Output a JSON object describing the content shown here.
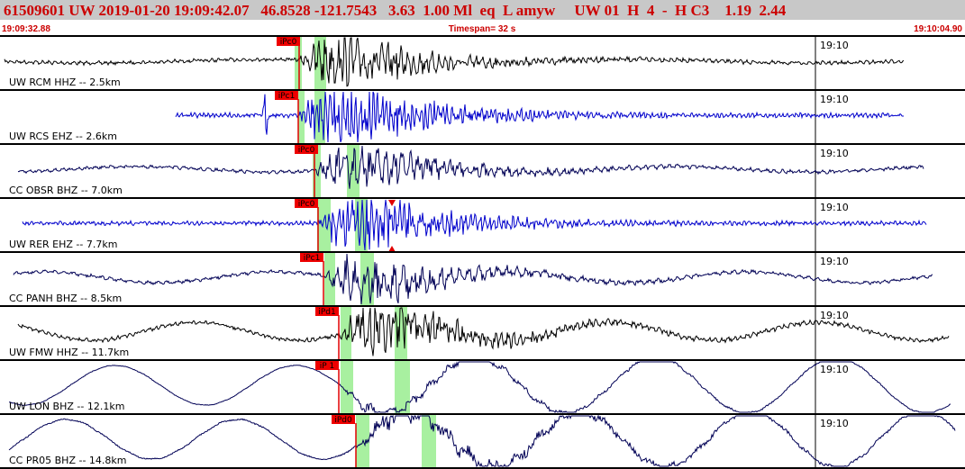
{
  "header": {
    "title": "61509601 UW 2019-01-20 19:09:42.07   46.8528 -121.7543   3.63  1.00 Ml  eq  L amyw     UW 01  H  4  -  H C3    1.19  2.44",
    "start": "19:09:32.88",
    "timespan": "Timespan= 32 s",
    "end": "19:10:04.90"
  },
  "traces": [
    {
      "label": "UW RCM HHZ -- 2.5km",
      "pick": "iPc0",
      "time": "19:10",
      "color": "#000000"
    },
    {
      "label": "UW RCS EHZ -- 2.6km",
      "pick": "iPc1",
      "time": "19:10",
      "color": "#0000cc"
    },
    {
      "label": "CC OBSR BHZ -- 7.0km",
      "pick": "iPc0",
      "time": "19:10",
      "color": "#000055"
    },
    {
      "label": "UW RER EHZ -- 7.7km",
      "pick": "iPc0",
      "time": "19:10",
      "color": "#0000cc"
    },
    {
      "label": "CC PANH BHZ -- 8.5km",
      "pick": "iPc1",
      "time": "19:10",
      "color": "#000055"
    },
    {
      "label": "UW FMW HHZ -- 11.7km",
      "pick": "iPd1",
      "time": "19:10",
      "color": "#000000"
    },
    {
      "label": "UW LON BHZ -- 12.1km",
      "pick": "iP 1",
      "time": "19:10",
      "color": "#000055"
    },
    {
      "label": "CC PR05 BHZ -- 14.8km",
      "pick": "iPd0",
      "time": "19:10",
      "color": "#000055"
    }
  ]
}
